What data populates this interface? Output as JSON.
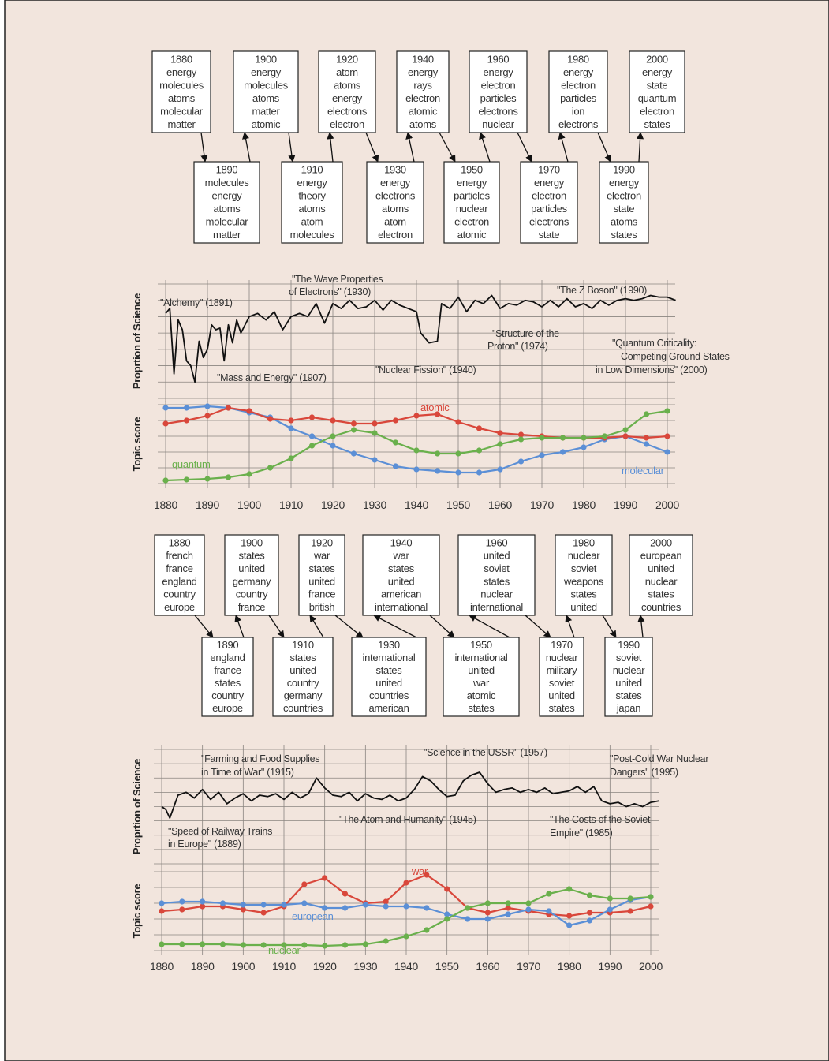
{
  "panels": [
    {
      "boxes": [
        {
          "year": "1880",
          "words": [
            "energy",
            "molecules",
            "atoms",
            "molecular",
            "matter"
          ]
        },
        {
          "year": "1890",
          "words": [
            "molecules",
            "energy",
            "atoms",
            "molecular",
            "matter"
          ]
        },
        {
          "year": "1900",
          "words": [
            "energy",
            "molecules",
            "atoms",
            "matter",
            "atomic"
          ]
        },
        {
          "year": "1910",
          "words": [
            "energy",
            "theory",
            "atoms",
            "atom",
            "molecules"
          ]
        },
        {
          "year": "1920",
          "words": [
            "atom",
            "atoms",
            "energy",
            "electrons",
            "electron"
          ]
        },
        {
          "year": "1930",
          "words": [
            "energy",
            "electrons",
            "atoms",
            "atom",
            "electron"
          ]
        },
        {
          "year": "1940",
          "words": [
            "energy",
            "rays",
            "electron",
            "atomic",
            "atoms"
          ]
        },
        {
          "year": "1950",
          "words": [
            "energy",
            "particles",
            "nuclear",
            "electron",
            "atomic"
          ]
        },
        {
          "year": "1960",
          "words": [
            "energy",
            "electron",
            "particles",
            "electrons",
            "nuclear"
          ]
        },
        {
          "year": "1970",
          "words": [
            "energy",
            "electron",
            "particles",
            "electrons",
            "state"
          ]
        },
        {
          "year": "1980",
          "words": [
            "energy",
            "electron",
            "particles",
            "ion",
            "electrons"
          ]
        },
        {
          "year": "1990",
          "words": [
            "energy",
            "electron",
            "state",
            "atoms",
            "states"
          ]
        },
        {
          "year": "2000",
          "words": [
            "energy",
            "state",
            "quantum",
            "electron",
            "states"
          ]
        }
      ]
    },
    {
      "boxes": [
        {
          "year": "1880",
          "words": [
            "french",
            "france",
            "england",
            "country",
            "europe"
          ]
        },
        {
          "year": "1890",
          "words": [
            "england",
            "france",
            "states",
            "country",
            "europe"
          ]
        },
        {
          "year": "1900",
          "words": [
            "states",
            "united",
            "germany",
            "country",
            "france"
          ]
        },
        {
          "year": "1910",
          "words": [
            "states",
            "united",
            "country",
            "germany",
            "countries"
          ]
        },
        {
          "year": "1920",
          "words": [
            "war",
            "states",
            "united",
            "france",
            "british"
          ]
        },
        {
          "year": "1930",
          "words": [
            "international",
            "states",
            "united",
            "countries",
            "american"
          ]
        },
        {
          "year": "1940",
          "words": [
            "war",
            "states",
            "united",
            "american",
            "international"
          ]
        },
        {
          "year": "1950",
          "words": [
            "international",
            "united",
            "war",
            "atomic",
            "states"
          ]
        },
        {
          "year": "1960",
          "words": [
            "united",
            "soviet",
            "states",
            "nuclear",
            "international"
          ]
        },
        {
          "year": "1970",
          "words": [
            "nuclear",
            "military",
            "soviet",
            "united",
            "states"
          ]
        },
        {
          "year": "1980",
          "words": [
            "nuclear",
            "soviet",
            "weapons",
            "states",
            "united"
          ]
        },
        {
          "year": "1990",
          "words": [
            "soviet",
            "nuclear",
            "united",
            "states",
            "japan"
          ]
        },
        {
          "year": "2000",
          "words": [
            "european",
            "united",
            "nuclear",
            "states",
            "countries"
          ]
        }
      ]
    }
  ],
  "chart_data": [
    {
      "type": "line",
      "ylabel": "Proprtion of Science",
      "xlim": [
        1880,
        2000
      ],
      "ylim": [
        0,
        7
      ],
      "yticks": [
        0,
        1,
        2,
        3,
        4,
        5,
        6,
        7
      ],
      "xticks": [
        1880,
        1890,
        1900,
        1910,
        1920,
        1930,
        1940,
        1950,
        1960,
        1970,
        1980,
        1990,
        2000
      ],
      "show_xtick_labels": false,
      "grid": true,
      "color": "#111111",
      "x": [
        1880,
        1881,
        1882,
        1883,
        1884,
        1885,
        1886,
        1887,
        1888,
        1889,
        1890,
        1891,
        1892,
        1893,
        1894,
        1895,
        1896,
        1897,
        1898,
        1900,
        1902,
        1904,
        1906,
        1908,
        1910,
        1912,
        1914,
        1916,
        1918,
        1920,
        1922,
        1924,
        1926,
        1928,
        1930,
        1932,
        1934,
        1936,
        1938,
        1940,
        1941,
        1943,
        1945,
        1946,
        1948,
        1950,
        1952,
        1954,
        1956,
        1958,
        1960,
        1962,
        1964,
        1966,
        1968,
        1970,
        1972,
        1974,
        1976,
        1978,
        1980,
        1982,
        1984,
        1986,
        1988,
        1990,
        1992,
        1994,
        1996,
        1998,
        2000,
        2002
      ],
      "values": [
        5.2,
        5.5,
        1.5,
        4.8,
        4.2,
        2.3,
        2.0,
        1.0,
        3.5,
        2.5,
        3.0,
        4.5,
        4.2,
        4.3,
        2.3,
        4.5,
        3.4,
        4.8,
        4.0,
        5.0,
        5.2,
        4.8,
        5.3,
        4.2,
        5.0,
        5.2,
        5.0,
        5.8,
        4.6,
        5.8,
        5.5,
        6.0,
        5.5,
        5.6,
        6.0,
        5.4,
        6.0,
        5.7,
        5.5,
        5.3,
        4.0,
        3.4,
        3.5,
        5.8,
        5.5,
        6.2,
        5.3,
        6.0,
        5.8,
        6.3,
        5.5,
        5.8,
        5.7,
        6.0,
        5.9,
        5.6,
        6.0,
        5.6,
        6.1,
        5.6,
        5.8,
        5.5,
        6.0,
        5.7,
        6.0,
        6.1,
        6.0,
        6.1,
        6.3,
        6.2,
        6.2,
        6.0
      ],
      "annotations": [
        {
          "lines": [
            "\"Alchemy\" (1891)"
          ]
        },
        {
          "lines": [
            "\"The Wave Properties",
            "of Electrons\" (1930)"
          ]
        },
        {
          "lines": [
            "\"The Z Boson\" (1990)"
          ]
        },
        {
          "lines": [
            "\"Structure of the",
            "Proton\" (1974)"
          ]
        },
        {
          "lines": [
            "\"Quantum Criticality:",
            "Competing Ground States",
            "in Low Dimensions\" (2000)"
          ]
        },
        {
          "lines": [
            "\"Mass and Energy\" (1907)"
          ]
        },
        {
          "lines": [
            "\"Nuclear Fission\" (1940)"
          ]
        }
      ]
    },
    {
      "type": "line",
      "ylabel": "Topic score",
      "xlim": [
        1880,
        2000
      ],
      "ylim": [
        0,
        5
      ],
      "yticks": [
        0,
        1,
        2,
        3,
        4,
        5
      ],
      "xticks": [
        1880,
        1890,
        1900,
        1910,
        1920,
        1930,
        1940,
        1950,
        1960,
        1970,
        1980,
        1990,
        2000
      ],
      "show_xtick_labels": true,
      "grid": true,
      "markers": true,
      "x": [
        1880,
        1885,
        1890,
        1895,
        1900,
        1905,
        1910,
        1915,
        1920,
        1925,
        1930,
        1935,
        1940,
        1945,
        1950,
        1955,
        1960,
        1965,
        1970,
        1975,
        1980,
        1985,
        1990,
        1995,
        2000
      ],
      "series": [
        {
          "name": "molecular",
          "color": "#5b8fd6",
          "values": [
            4.8,
            4.8,
            4.9,
            4.8,
            4.5,
            4.2,
            3.5,
            3.0,
            2.4,
            1.9,
            1.5,
            1.1,
            0.9,
            0.8,
            0.7,
            0.7,
            0.9,
            1.4,
            1.8,
            2.0,
            2.3,
            2.8,
            3.0,
            2.5,
            2.0
          ]
        },
        {
          "name": "atomic",
          "color": "#d9473b",
          "values": [
            3.8,
            4.0,
            4.3,
            4.8,
            4.6,
            4.1,
            4.0,
            4.2,
            4.0,
            3.8,
            3.8,
            4.0,
            4.3,
            4.4,
            3.9,
            3.5,
            3.2,
            3.1,
            3.0,
            2.9,
            2.9,
            2.9,
            3.0,
            2.9,
            3.0
          ]
        },
        {
          "name": "quantum",
          "color": "#6ab04c",
          "values": [
            0.2,
            0.25,
            0.3,
            0.4,
            0.6,
            1.0,
            1.6,
            2.4,
            3.0,
            3.4,
            3.2,
            2.6,
            2.1,
            1.9,
            1.9,
            2.1,
            2.5,
            2.8,
            2.9,
            2.9,
            2.9,
            3.0,
            3.4,
            4.4,
            4.6
          ]
        }
      ]
    },
    {
      "type": "line",
      "ylabel": "Proprtion of Science",
      "xlim": [
        1880,
        2000
      ],
      "ylim": [
        0,
        8
      ],
      "yticks": [
        0,
        1,
        2,
        3,
        4,
        5,
        6,
        7,
        8
      ],
      "xticks": [
        1880,
        1890,
        1900,
        1910,
        1920,
        1930,
        1940,
        1950,
        1960,
        1970,
        1980,
        1990,
        2000
      ],
      "show_xtick_labels": false,
      "grid": true,
      "color": "#111111",
      "x": [
        1880,
        1881,
        1882,
        1884,
        1886,
        1888,
        1890,
        1892,
        1894,
        1896,
        1898,
        1900,
        1902,
        1904,
        1906,
        1908,
        1910,
        1912,
        1914,
        1916,
        1918,
        1920,
        1922,
        1924,
        1926,
        1928,
        1930,
        1932,
        1934,
        1936,
        1938,
        1940,
        1942,
        1944,
        1946,
        1948,
        1950,
        1952,
        1954,
        1956,
        1958,
        1960,
        1962,
        1964,
        1966,
        1968,
        1970,
        1972,
        1974,
        1976,
        1978,
        1980,
        1982,
        1984,
        1986,
        1988,
        1990,
        1992,
        1994,
        1996,
        1998,
        2000,
        2002
      ],
      "values": [
        4.0,
        3.8,
        3.2,
        4.8,
        5.0,
        4.6,
        5.2,
        4.5,
        5.0,
        4.2,
        4.6,
        4.9,
        4.4,
        4.8,
        4.7,
        4.9,
        4.5,
        5.0,
        4.6,
        4.9,
        6.0,
        5.3,
        4.8,
        4.7,
        5.0,
        4.4,
        4.9,
        4.6,
        4.5,
        4.8,
        4.4,
        4.6,
        5.2,
        6.1,
        5.8,
        5.2,
        4.7,
        4.8,
        5.8,
        6.2,
        6.4,
        5.6,
        5.0,
        5.2,
        5.3,
        5.0,
        5.2,
        5.0,
        5.3,
        4.9,
        5.0,
        5.1,
        5.4,
        5.0,
        5.4,
        4.4,
        4.2,
        4.3,
        4.0,
        4.2,
        4.0,
        4.3,
        4.4
      ],
      "annotations": [
        {
          "lines": [
            "\"Farming and Food Supplies",
            "in Time of War\" (1915)"
          ]
        },
        {
          "lines": [
            "\"Science in the USSR\" (1957)"
          ]
        },
        {
          "lines": [
            "\"Post-Cold War Nuclear",
            "Dangers\" (1995)"
          ]
        },
        {
          "lines": [
            "\"The Atom and Humanity\" (1945)"
          ]
        },
        {
          "lines": [
            "\"The Costs of the Soviet",
            "Empire\" (1985)"
          ]
        },
        {
          "lines": [
            "\"Speed of Railway Trains",
            "in Europe\" (1889)"
          ]
        }
      ]
    },
    {
      "type": "line",
      "ylabel": "Topic score",
      "xlim": [
        1880,
        2000
      ],
      "ylim": [
        0,
        5
      ],
      "yticks": [
        0,
        1,
        2,
        3,
        4,
        5
      ],
      "xticks": [
        1880,
        1890,
        1900,
        1910,
        1920,
        1930,
        1940,
        1950,
        1960,
        1970,
        1980,
        1990,
        2000
      ],
      "show_xtick_labels": true,
      "grid": true,
      "markers": true,
      "x": [
        1880,
        1885,
        1890,
        1895,
        1900,
        1905,
        1910,
        1915,
        1920,
        1925,
        1930,
        1935,
        1940,
        1945,
        1950,
        1955,
        1960,
        1965,
        1970,
        1975,
        1980,
        1985,
        1990,
        1995,
        2000
      ],
      "series": [
        {
          "name": "war",
          "color": "#d9473b",
          "values": [
            2.5,
            2.6,
            2.8,
            2.8,
            2.6,
            2.4,
            2.8,
            4.2,
            4.6,
            3.6,
            3.0,
            3.1,
            4.3,
            4.8,
            3.9,
            2.7,
            2.4,
            2.7,
            2.5,
            2.3,
            2.2,
            2.4,
            2.4,
            2.5,
            2.8
          ]
        },
        {
          "name": "european",
          "color": "#5b8fd6",
          "values": [
            3.0,
            3.1,
            3.1,
            3.0,
            2.9,
            2.9,
            2.9,
            3.0,
            2.7,
            2.7,
            2.9,
            2.8,
            2.8,
            2.7,
            2.3,
            2.0,
            2.0,
            2.3,
            2.6,
            2.5,
            1.6,
            1.9,
            2.6,
            3.2,
            3.4
          ]
        },
        {
          "name": "nuclear",
          "color": "#6ab04c",
          "values": [
            0.4,
            0.4,
            0.4,
            0.4,
            0.35,
            0.35,
            0.35,
            0.35,
            0.3,
            0.35,
            0.4,
            0.6,
            0.9,
            1.3,
            2.0,
            2.7,
            3.0,
            3.0,
            3.0,
            3.6,
            3.9,
            3.5,
            3.3,
            3.3,
            3.4
          ]
        }
      ]
    }
  ]
}
